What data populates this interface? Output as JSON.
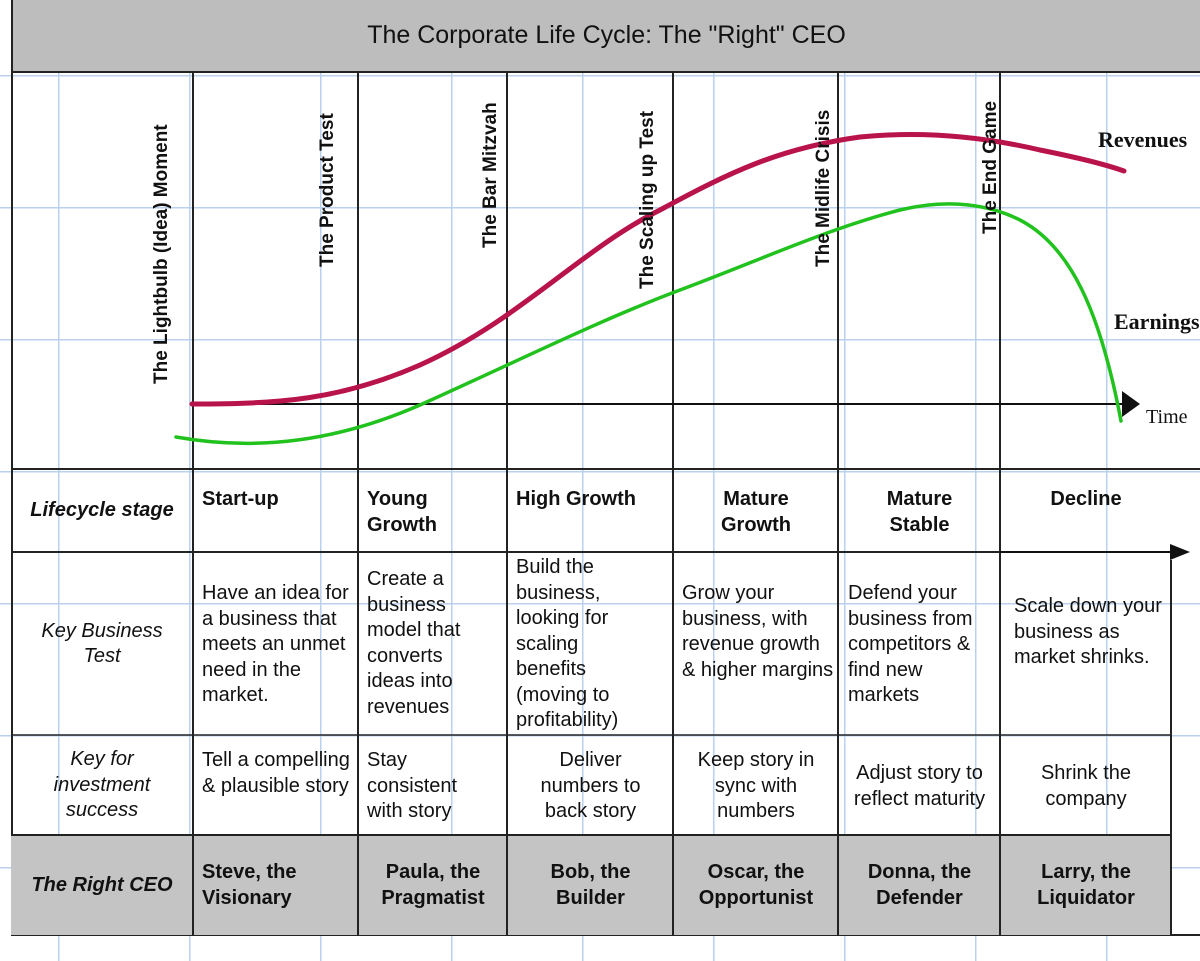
{
  "title": "The Corporate Life Cycle: The \"Right\" CEO",
  "milestones": [
    "The Lightbulb (Idea) Moment",
    "The Product Test",
    "The Bar Mitzvah",
    "The Scaling up Test",
    "The Midlife Crisis",
    "The End Game"
  ],
  "curves": {
    "revenues_label": "Revenues",
    "earnings_label": "Earnings",
    "time_label": "Time",
    "revenues_color": "#b8134a",
    "earnings_color": "#22c21e"
  },
  "rows": {
    "stage_label": "Lifecycle stage",
    "test_label": "Key Business Test",
    "invest_label": "Key for investment success",
    "ceo_label": "The Right CEO"
  },
  "stages": [
    {
      "name": "Start-up",
      "test": "Have an idea for a business that meets an unmet need in the market.",
      "invest": "Tell a compelling & plausible story",
      "ceo": "Steve, the Visionary"
    },
    {
      "name": "Young Growth",
      "test": "Create a business model that converts ideas into revenues",
      "invest": "Stay consistent with story",
      "ceo": "Paula, the Pragmatist"
    },
    {
      "name": "High Growth",
      "test": "Build the business, looking for scaling benefits (moving to profitability)",
      "invest": "Deliver numbers to back story",
      "ceo": "Bob, the Builder"
    },
    {
      "name": "Mature Growth",
      "test": "Grow your business, with revenue growth & higher margins",
      "invest": "Keep story in sync with numbers",
      "ceo": "Oscar, the Opportunist"
    },
    {
      "name": "Mature Stable",
      "test": "Defend your business from competitors & find new markets",
      "invest": "Adjust story to reflect maturity",
      "ceo": "Donna, the Defender"
    },
    {
      "name": "Decline",
      "test": "Scale down your business as market shrinks.",
      "invest": "Shrink the company",
      "ceo": "Larry, the Liquidator"
    }
  ]
}
